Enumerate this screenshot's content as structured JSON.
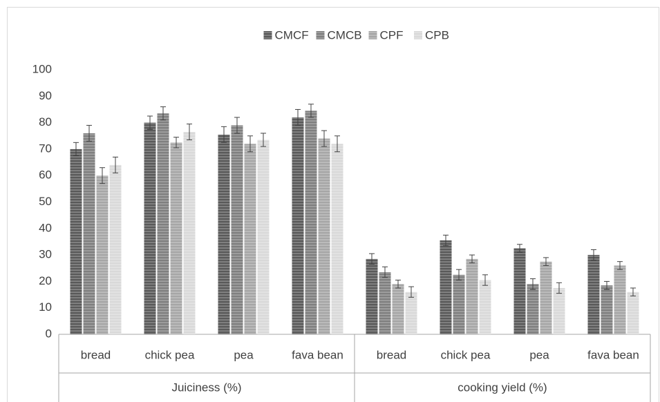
{
  "chart_data": {
    "type": "bar",
    "groups": [
      {
        "name": "Juiciness (%)",
        "categories": [
          "bread",
          "chick pea",
          "pea",
          "fava bean"
        ]
      },
      {
        "name": "cooking yield (%)",
        "categories": [
          "bread",
          "chick pea",
          "pea",
          "fava bean"
        ]
      }
    ],
    "series": [
      {
        "name": "CMCF",
        "color": "#595959",
        "values": [
          70,
          80,
          75.5,
          82,
          28.5,
          35.5,
          32.5,
          30
        ],
        "errors": [
          2.5,
          2.5,
          3,
          3,
          2,
          2,
          1.5,
          2
        ]
      },
      {
        "name": "CMCB",
        "color": "#7f7f7f",
        "values": [
          76,
          83.5,
          79,
          84.5,
          23.5,
          22.5,
          19,
          18.5
        ],
        "errors": [
          3,
          2.5,
          3,
          2.5,
          2,
          2,
          2,
          1.5
        ]
      },
      {
        "name": "CPF",
        "color": "#a6a6a6",
        "values": [
          60,
          72.5,
          72,
          74,
          19,
          28.5,
          27.5,
          26
        ],
        "errors": [
          3,
          2,
          3,
          3,
          1.5,
          1.5,
          1.5,
          1.5
        ]
      },
      {
        "name": "CPB",
        "color": "#d9d9d9",
        "values": [
          64,
          76.5,
          73.5,
          72,
          16,
          20.5,
          17.5,
          16
        ],
        "errors": [
          3,
          3,
          2.5,
          3,
          2,
          2,
          2,
          1.5
        ]
      }
    ],
    "ylim": [
      0,
      100
    ],
    "yticks": [
      0,
      10,
      20,
      30,
      40,
      50,
      60,
      70,
      80,
      90,
      100
    ],
    "grid": false,
    "legend": "top"
  }
}
